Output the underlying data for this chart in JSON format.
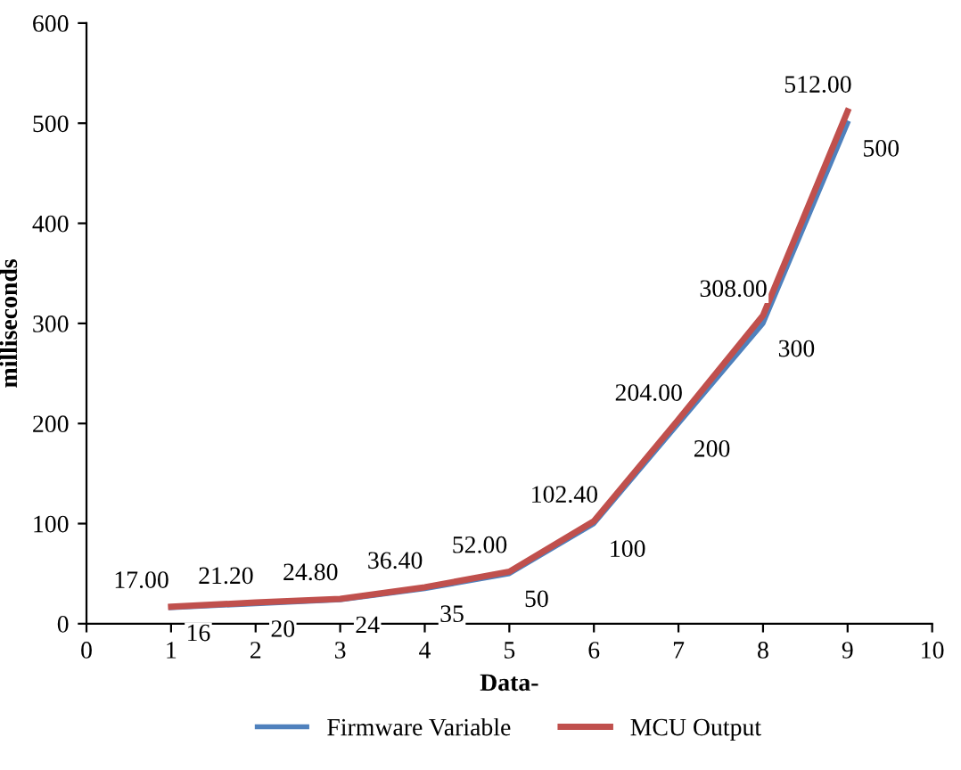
{
  "chart_data": {
    "type": "line",
    "xlabel": "Data-",
    "ylabel": "milliseconds",
    "x": [
      1,
      2,
      3,
      4,
      5,
      6,
      7,
      8,
      9
    ],
    "series": [
      {
        "name": "Firmware Variable",
        "color": "#4f81bd",
        "values": [
          16,
          20,
          24,
          35,
          50,
          100,
          200,
          300,
          500
        ],
        "value_labels": [
          "16",
          "20",
          "24",
          "35",
          "50",
          "100",
          "200",
          "300",
          "500"
        ]
      },
      {
        "name": "MCU Output",
        "color": "#c0504d",
        "values": [
          17,
          21.2,
          24.8,
          36.4,
          52,
          102.4,
          204,
          308,
          512
        ],
        "value_labels": [
          "17.00",
          "21.20",
          "24.80",
          "36.40",
          "52.00",
          "102.40",
          "204.00",
          "308.00",
          "512.00"
        ]
      }
    ],
    "xlim": [
      0,
      10
    ],
    "xticks": [
      0,
      1,
      2,
      3,
      4,
      5,
      6,
      7,
      8,
      9,
      10
    ],
    "ylim": [
      0,
      600
    ],
    "yticks": [
      0,
      100,
      200,
      300,
      400,
      500,
      600
    ],
    "grid": false,
    "legend": "bottom",
    "marker": "none",
    "line_style": "solid"
  }
}
